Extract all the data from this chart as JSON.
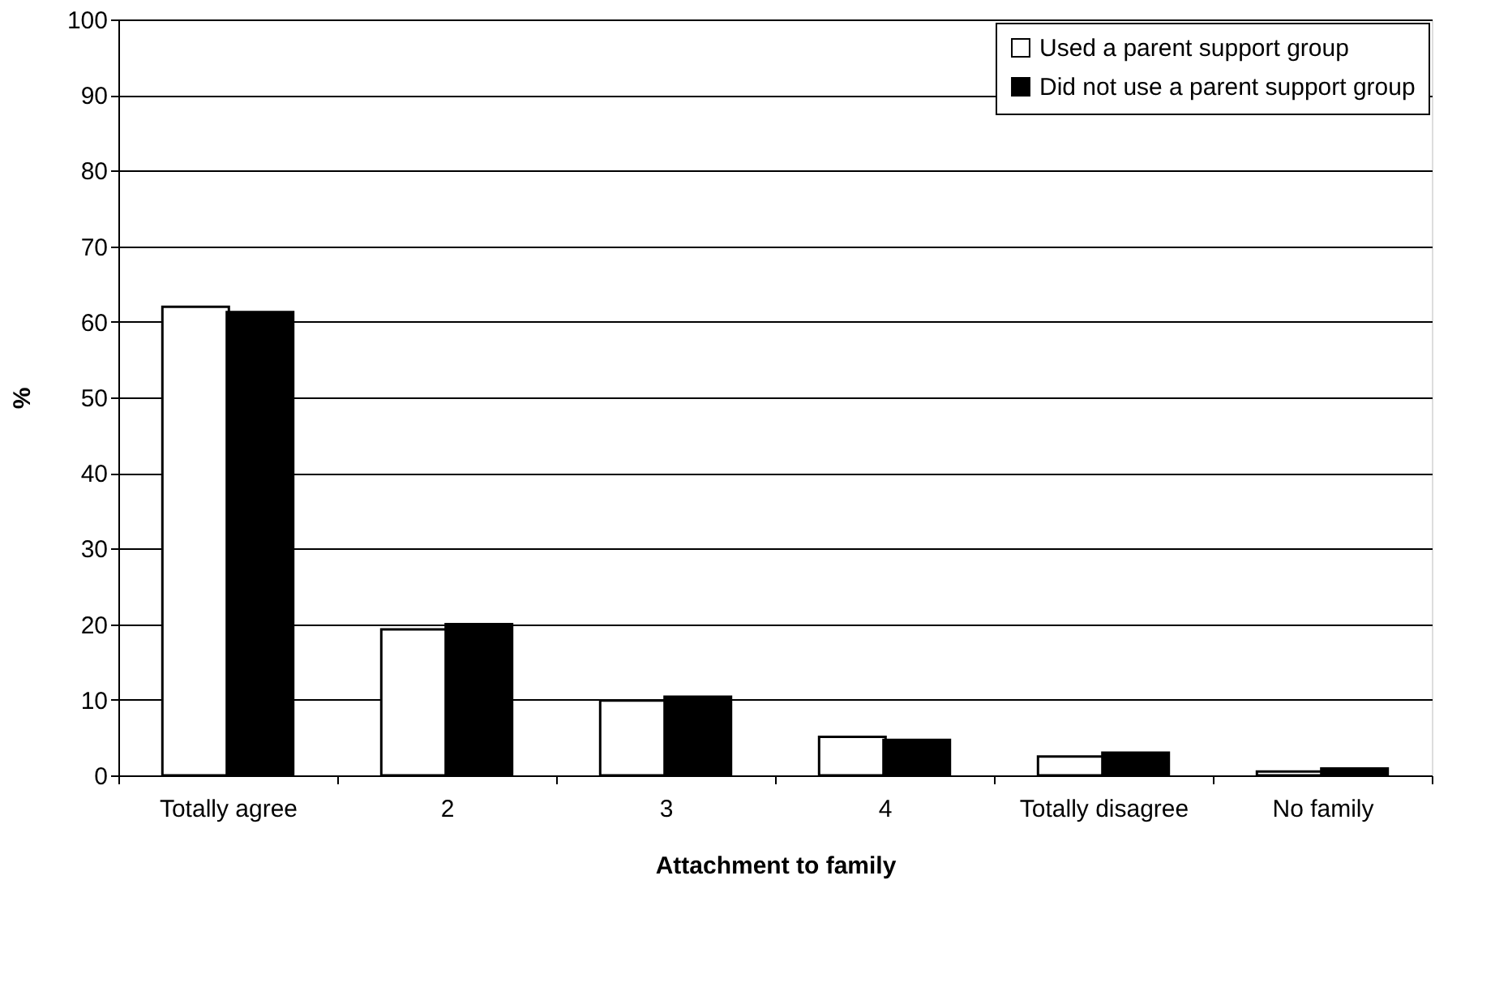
{
  "chart_data": {
    "type": "bar",
    "xlabel": "Attachment to family",
    "ylabel": "%",
    "categories": [
      "Totally agree",
      "2",
      "3",
      "4",
      "Totally disagree",
      "No family"
    ],
    "series": [
      {
        "name": "Used a parent support group",
        "color": "#ffffff",
        "values": [
          62.0,
          19.3,
          9.9,
          5.1,
          2.5,
          0.5
        ]
      },
      {
        "name": "Did not use a parent support group",
        "color": "#000000",
        "values": [
          61.3,
          20.0,
          10.4,
          4.7,
          3.0,
          0.9
        ]
      }
    ],
    "ylim": [
      0,
      100
    ],
    "yticks": [
      0,
      10,
      20,
      30,
      40,
      50,
      60,
      70,
      80,
      90,
      100
    ],
    "grid": "y",
    "legend": "top right"
  }
}
